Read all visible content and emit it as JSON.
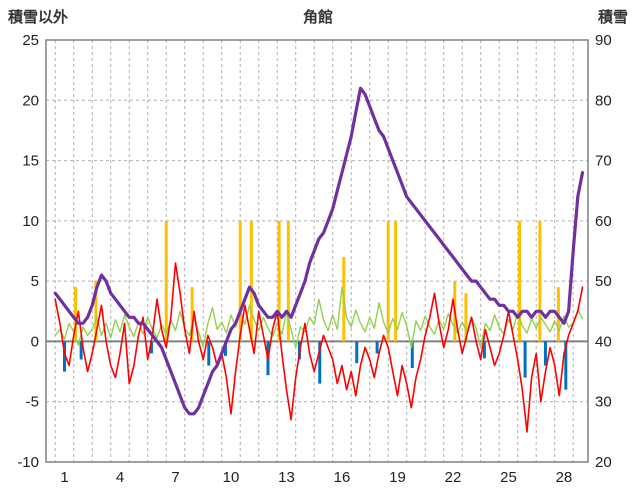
{
  "header": {
    "left_axis_title": "積雪以外",
    "title": "角館",
    "right_axis_title": "積雪"
  },
  "chart_data": {
    "type": "line",
    "title": "角館",
    "x_start": 1,
    "x_step": 0.25,
    "x_axis": {
      "min": 0.5,
      "max": 29.8,
      "grid_start": 1,
      "grid_end": 29,
      "tick_days": [
        1,
        4,
        7,
        10,
        13,
        16,
        19,
        22,
        25,
        28
      ],
      "label_offset": 0.5
    },
    "left_axis": {
      "label": "積雪以外",
      "min": -10,
      "max": 25,
      "ticks": [
        25,
        20,
        15,
        10,
        5,
        0,
        -5,
        -10
      ]
    },
    "right_axis": {
      "label": "積雪",
      "min": 20,
      "max": 90,
      "ticks": [
        90,
        80,
        70,
        60,
        50,
        40,
        30,
        20
      ]
    },
    "grid": {
      "color": "#b0b0b0",
      "zero_line_color": "#808080",
      "border_color": "#808080"
    },
    "series": [
      {
        "name": "orange-bars",
        "axis": "left",
        "type": "bar",
        "color": "#FFC000",
        "width": 3,
        "points": [
          {
            "x": 2.1,
            "v": 4.5
          },
          {
            "x": 3.2,
            "v": 5
          },
          {
            "x": 7.0,
            "v": 10
          },
          {
            "x": 8.4,
            "v": 4.5
          },
          {
            "x": 11.0,
            "v": 10
          },
          {
            "x": 11.6,
            "v": 10
          },
          {
            "x": 13.1,
            "v": 10
          },
          {
            "x": 13.6,
            "v": 10
          },
          {
            "x": 16.6,
            "v": 7
          },
          {
            "x": 19.0,
            "v": 10
          },
          {
            "x": 19.4,
            "v": 10
          },
          {
            "x": 22.6,
            "v": 5
          },
          {
            "x": 23.2,
            "v": 4
          },
          {
            "x": 26.1,
            "v": 10
          },
          {
            "x": 27.2,
            "v": 10
          },
          {
            "x": 28.2,
            "v": 4.5
          }
        ]
      },
      {
        "name": "blue-bars",
        "axis": "left",
        "type": "bar",
        "color": "#0070C0",
        "width": 3,
        "points": [
          {
            "x": 1.5,
            "v": -2.5
          },
          {
            "x": 2.4,
            "v": -1.5
          },
          {
            "x": 6.2,
            "v": -1.0
          },
          {
            "x": 9.3,
            "v": -2.0
          },
          {
            "x": 10.2,
            "v": -1.2
          },
          {
            "x": 12.5,
            "v": -2.8
          },
          {
            "x": 14.2,
            "v": -1.5
          },
          {
            "x": 15.3,
            "v": -3.5
          },
          {
            "x": 17.3,
            "v": -1.8
          },
          {
            "x": 18.4,
            "v": -1.0
          },
          {
            "x": 20.3,
            "v": -2.2
          },
          {
            "x": 24.2,
            "v": -1.4
          },
          {
            "x": 26.4,
            "v": -3.0
          },
          {
            "x": 27.5,
            "v": -2.0
          },
          {
            "x": 28.6,
            "v": -4.0
          }
        ]
      },
      {
        "name": "green-line",
        "axis": "left",
        "type": "line",
        "color": "#92D050",
        "width": 1.4,
        "values": [
          0.5,
          1.0,
          0.2,
          1.5,
          0.8,
          -0.3,
          1.2,
          0.5,
          1.0,
          2.0,
          0.5,
          1.5,
          0.3,
          1.8,
          0.8,
          2.2,
          1.2,
          0.4,
          1.6,
          0.6,
          2.0,
          1.0,
          0.3,
          1.4,
          0.6,
          1.8,
          0.9,
          2.5,
          1.1,
          0.5,
          1.9,
          0.8,
          -0.4,
          1.5,
          2.8,
          1.0,
          1.6,
          0.7,
          2.2,
          1.2,
          2.5,
          1.4,
          3.0,
          1.8,
          0.9,
          2.0,
          1.1,
          0.4,
          1.5,
          0.6,
          2.4,
          1.0,
          -0.5,
          1.2,
          0.8,
          2.0,
          1.4,
          3.5,
          1.8,
          0.9,
          2.2,
          1.0,
          4.5,
          2.0,
          1.2,
          2.6,
          1.5,
          0.8,
          2.0,
          1.1,
          3.2,
          1.6,
          0.7,
          1.9,
          1.0,
          2.4,
          1.3,
          -0.5,
          1.7,
          0.9,
          2.1,
          1.2,
          0.6,
          1.8,
          1.0,
          2.3,
          1.4,
          0.7,
          1.6,
          0.8,
          2.0,
          1.1,
          -0.5,
          1.5,
          0.9,
          2.2,
          1.2,
          0.6,
          1.8,
          1.0,
          2.4,
          1.3,
          0.7,
          1.9,
          1.1,
          2.0,
          1.4,
          0.8,
          1.7,
          0.9,
          2.1,
          1.2,
          1.5,
          2.6,
          1.9
        ]
      },
      {
        "name": "red-line",
        "axis": "left",
        "type": "line",
        "color": "#FF0000",
        "width": 1.6,
        "values": [
          3.5,
          1.5,
          -1.0,
          -2.0,
          0.5,
          2.5,
          -0.5,
          -2.5,
          -1.0,
          1.0,
          3.0,
          0.0,
          -2.0,
          -3.0,
          -1.0,
          1.5,
          -3.5,
          -2.0,
          0.5,
          2.0,
          -1.5,
          0.5,
          3.5,
          1.0,
          -0.5,
          2.0,
          6.5,
          4.0,
          1.0,
          -1.0,
          2.5,
          0.0,
          -1.5,
          0.5,
          -0.5,
          -2.0,
          -1.0,
          -3.0,
          -6.0,
          -2.5,
          0.5,
          3.0,
          1.0,
          -1.0,
          2.5,
          0.5,
          -1.5,
          1.0,
          2.5,
          -1.0,
          -4.0,
          -6.5,
          -3.0,
          -0.5,
          1.5,
          -1.0,
          -2.5,
          -1.0,
          0.5,
          -0.5,
          -1.5,
          -3.5,
          -2.0,
          -4.0,
          -2.5,
          -4.5,
          -2.0,
          -0.5,
          -1.5,
          -3.0,
          -1.0,
          0.5,
          -0.5,
          -2.5,
          -4.5,
          -2.0,
          -3.5,
          -5.5,
          -3.0,
          -1.5,
          0.5,
          2.0,
          4.0,
          1.5,
          -0.5,
          1.0,
          3.5,
          1.0,
          -1.0,
          0.5,
          2.0,
          0.0,
          -1.5,
          1.0,
          -0.5,
          -2.0,
          -1.0,
          0.5,
          2.5,
          0.5,
          -1.5,
          -4.0,
          -7.5,
          -3.0,
          -1.0,
          -5.0,
          -2.5,
          -0.5,
          -2.0,
          -4.5,
          -1.0,
          0.5,
          1.5,
          2.5,
          4.5
        ]
      },
      {
        "name": "purple-line",
        "axis": "right",
        "type": "line",
        "color": "#7030A0",
        "width": 3.2,
        "values": [
          48,
          47,
          46,
          45,
          44,
          43,
          43,
          44,
          46,
          49,
          51,
          50,
          48,
          47,
          46,
          45,
          44,
          44,
          43,
          43,
          42,
          41,
          40,
          39,
          37,
          35,
          33,
          31,
          29,
          28,
          28,
          29,
          31,
          33,
          35,
          36,
          38,
          40,
          42,
          43,
          45,
          47,
          49,
          48,
          46,
          45,
          44,
          44,
          45,
          44,
          45,
          44,
          46,
          48,
          50,
          53,
          55,
          57,
          58,
          60,
          62,
          65,
          68,
          71,
          74,
          78,
          82,
          81,
          79,
          77,
          75,
          74,
          72,
          70,
          68,
          66,
          64,
          63,
          62,
          61,
          60,
          59,
          58,
          57,
          56,
          55,
          54,
          53,
          52,
          51,
          50,
          50,
          49,
          48,
          47,
          47,
          46,
          46,
          45,
          45,
          44,
          45,
          45,
          44,
          45,
          45,
          44,
          45,
          45,
          44,
          43,
          45,
          55,
          64,
          68
        ]
      }
    ]
  }
}
